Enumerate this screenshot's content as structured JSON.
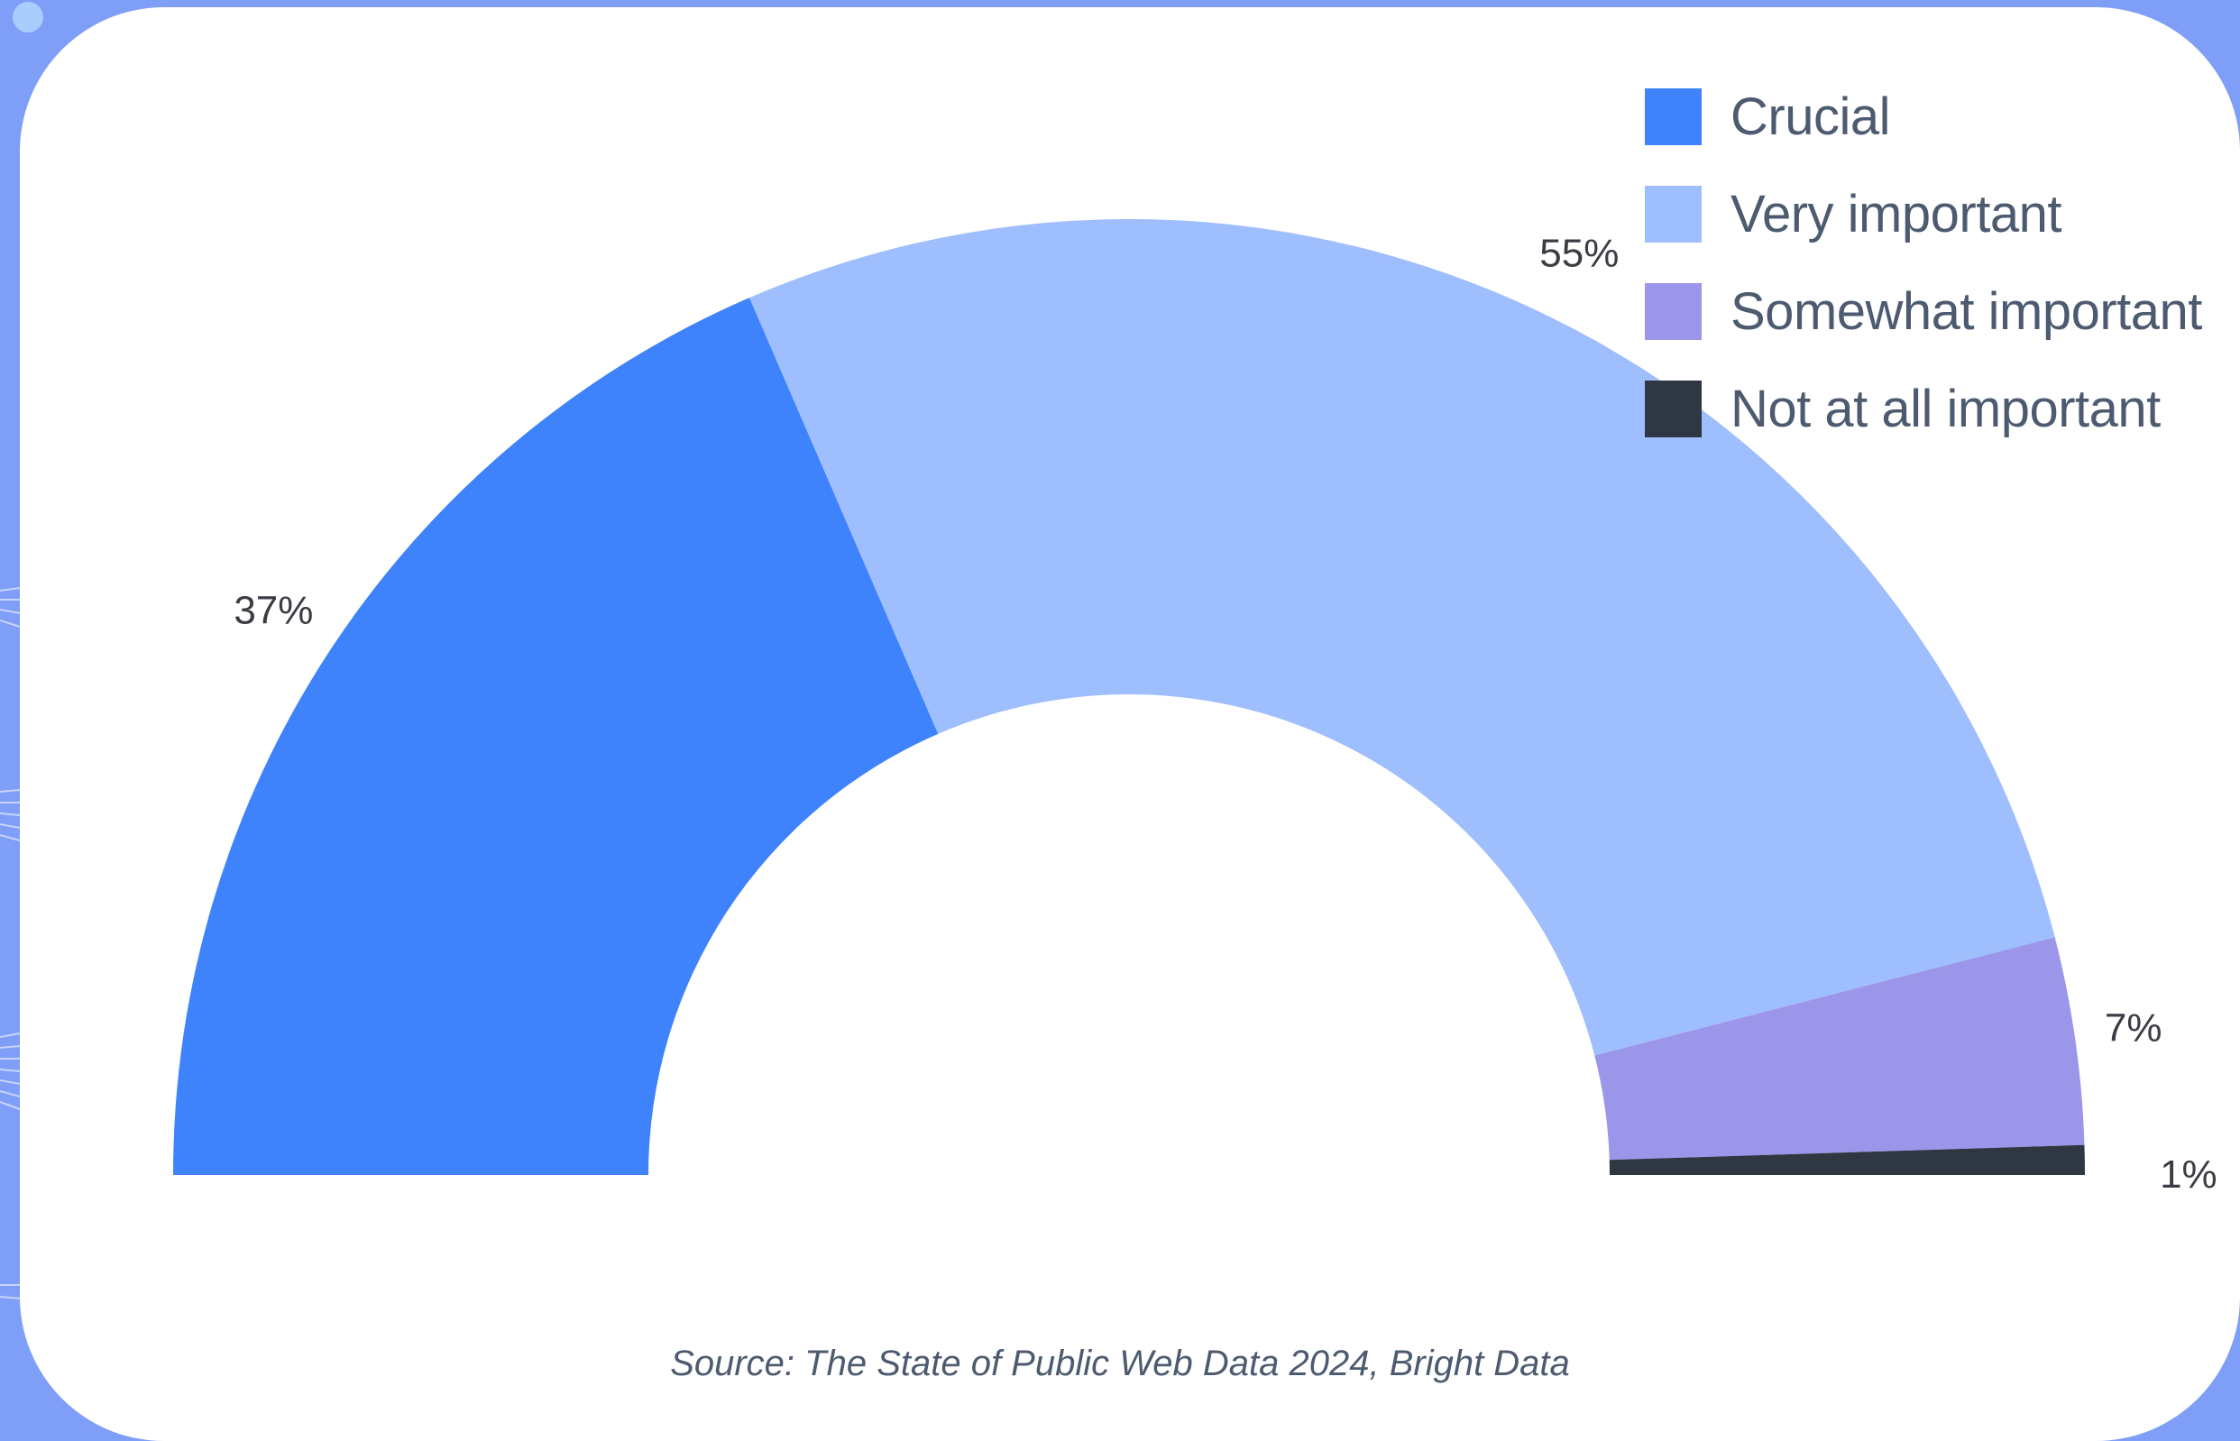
{
  "chart_data": {
    "type": "pie",
    "style": "semi-donut",
    "categories": [
      "Crucial",
      "Very important",
      "Somewhat important",
      "Not at all important"
    ],
    "values": [
      37,
      55,
      7,
      1
    ],
    "labels": [
      "37%",
      "55%",
      "7%",
      "1%"
    ],
    "colors": [
      "#3e82fc",
      "#9ebefe",
      "#9b96ea",
      "#2f3742"
    ],
    "legend_position": "top-right"
  },
  "source": "Source: The State of Public Web Data 2024, Bright Data"
}
